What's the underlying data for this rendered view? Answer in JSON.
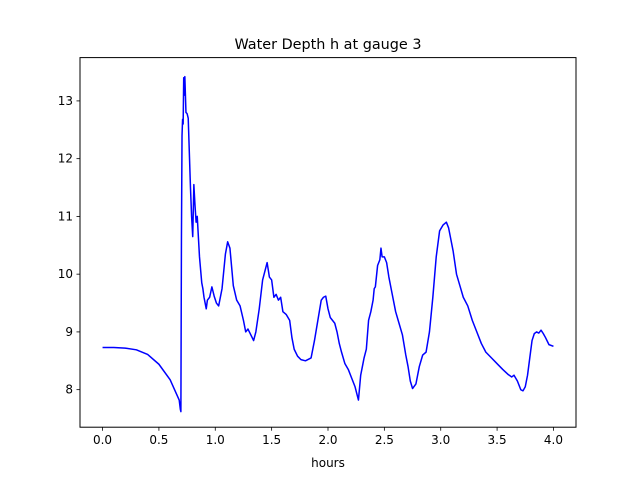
{
  "chart_data": {
    "type": "line",
    "title": "Water Depth h at gauge 3",
    "xlabel": "hours",
    "ylabel": "",
    "xlim": [
      -0.2,
      4.2
    ],
    "ylim": [
      7.35,
      13.75
    ],
    "grid": false,
    "x_ticks": [
      0.0,
      0.5,
      1.0,
      1.5,
      2.0,
      2.5,
      3.0,
      3.5,
      4.0
    ],
    "x_tick_labels": [
      "0.0",
      "0.5",
      "1.0",
      "1.5",
      "2.0",
      "2.5",
      "3.0",
      "3.5",
      "4.0"
    ],
    "y_ticks": [
      8,
      9,
      10,
      11,
      12,
      13
    ],
    "y_tick_labels": [
      "8",
      "9",
      "10",
      "11",
      "12",
      "13"
    ],
    "series": [
      {
        "color": "#0000ff",
        "x": [
          0.0,
          0.1,
          0.2,
          0.3,
          0.4,
          0.5,
          0.6,
          0.68,
          0.69,
          0.695,
          0.7,
          0.705,
          0.71,
          0.715,
          0.72,
          0.725,
          0.73,
          0.74,
          0.75,
          0.76,
          0.78,
          0.79,
          0.8,
          0.81,
          0.82,
          0.83,
          0.84,
          0.86,
          0.88,
          0.89,
          0.9,
          0.92,
          0.93,
          0.95,
          0.97,
          0.99,
          1.01,
          1.03,
          1.06,
          1.09,
          1.11,
          1.13,
          1.16,
          1.19,
          1.22,
          1.25,
          1.27,
          1.29,
          1.32,
          1.34,
          1.36,
          1.39,
          1.42,
          1.44,
          1.46,
          1.48,
          1.5,
          1.52,
          1.54,
          1.56,
          1.58,
          1.6,
          1.63,
          1.66,
          1.68,
          1.7,
          1.73,
          1.76,
          1.8,
          1.85,
          1.88,
          1.91,
          1.94,
          1.96,
          1.98,
          2.0,
          2.02,
          2.04,
          2.06,
          2.08,
          2.1,
          2.12,
          2.15,
          2.18,
          2.21,
          2.24,
          2.27,
          2.29,
          2.31,
          2.32,
          2.34,
          2.36,
          2.38,
          2.4,
          2.41,
          2.42,
          2.44,
          2.46,
          2.47,
          2.48,
          2.5,
          2.52,
          2.54,
          2.57,
          2.6,
          2.63,
          2.66,
          2.69,
          2.71,
          2.73,
          2.75,
          2.78,
          2.81,
          2.84,
          2.87,
          2.9,
          2.93,
          2.96,
          2.99,
          3.02,
          3.05,
          3.07,
          3.09,
          3.11,
          3.14,
          3.17,
          3.2,
          3.24,
          3.28,
          3.32,
          3.36,
          3.4,
          3.45,
          3.5,
          3.55,
          3.6,
          3.63,
          3.65,
          3.68,
          3.71,
          3.73,
          3.75,
          3.77,
          3.79,
          3.81,
          3.83,
          3.85,
          3.87,
          3.89,
          3.91,
          3.93,
          3.96,
          4.0
        ],
        "y": [
          8.73,
          8.73,
          8.72,
          8.69,
          8.61,
          8.44,
          8.17,
          7.82,
          7.66,
          7.62,
          10.65,
          12.4,
          12.68,
          12.6,
          13.4,
          13.1,
          13.42,
          12.8,
          12.78,
          12.7,
          11.5,
          11.0,
          10.65,
          11.55,
          11.2,
          10.9,
          11.0,
          10.3,
          9.85,
          9.75,
          9.6,
          9.4,
          9.55,
          9.6,
          9.78,
          9.62,
          9.5,
          9.45,
          9.75,
          10.35,
          10.56,
          10.45,
          9.8,
          9.55,
          9.45,
          9.2,
          9.0,
          9.05,
          8.93,
          8.85,
          9.0,
          9.4,
          9.9,
          10.05,
          10.2,
          9.95,
          9.9,
          9.6,
          9.65,
          9.55,
          9.6,
          9.35,
          9.3,
          9.2,
          8.9,
          8.7,
          8.58,
          8.52,
          8.5,
          8.55,
          8.85,
          9.2,
          9.55,
          9.6,
          9.62,
          9.4,
          9.25,
          9.2,
          9.15,
          9.0,
          8.8,
          8.65,
          8.45,
          8.35,
          8.2,
          8.05,
          7.82,
          8.25,
          8.45,
          8.55,
          8.7,
          9.2,
          9.35,
          9.55,
          9.75,
          9.78,
          10.15,
          10.25,
          10.45,
          10.3,
          10.3,
          10.2,
          9.95,
          9.65,
          9.35,
          9.15,
          8.95,
          8.6,
          8.4,
          8.15,
          8.02,
          8.1,
          8.4,
          8.6,
          8.65,
          9.0,
          9.6,
          10.3,
          10.75,
          10.85,
          10.9,
          10.8,
          10.6,
          10.4,
          10.0,
          9.8,
          9.6,
          9.45,
          9.2,
          9.0,
          8.8,
          8.65,
          8.55,
          8.45,
          8.35,
          8.26,
          8.22,
          8.25,
          8.15,
          8.0,
          7.98,
          8.05,
          8.25,
          8.55,
          8.85,
          8.97,
          9.0,
          8.98,
          9.03,
          8.97,
          8.9,
          8.78,
          8.75
        ]
      }
    ]
  }
}
